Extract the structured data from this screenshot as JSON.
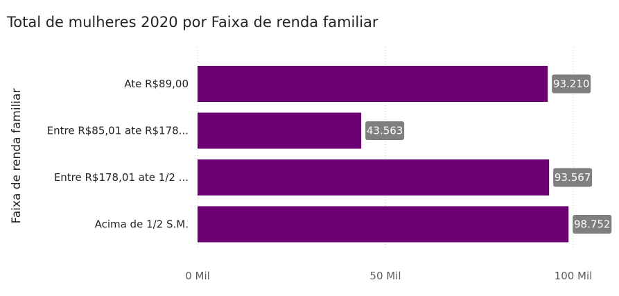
{
  "chart_data": {
    "type": "bar",
    "orientation": "horizontal",
    "title": "Total de mulheres 2020 por Faixa de renda familiar",
    "ylabel": "Faixa de renda familiar",
    "xlabel": "",
    "categories": [
      "Ate R$89,00",
      "Entre R$85,01 ate R$178...",
      "Entre R$178,01 ate 1/2 ...",
      "Acima de 1/2 S.M."
    ],
    "values": [
      93210,
      43563,
      93567,
      98752
    ],
    "value_labels": [
      "93.210",
      "43.563",
      "93.567",
      "98.752"
    ],
    "xlim": [
      0,
      100000
    ],
    "x_ticks": [
      {
        "value": 0,
        "label": "0 Mil"
      },
      {
        "value": 50000,
        "label": "50 Mil"
      },
      {
        "value": 100000,
        "label": "100 Mil"
      }
    ],
    "gridlines": true,
    "colors": {
      "bar": "#6b0072",
      "label_bg": "#7f7f7f",
      "label_bg_inside": "#3a0d3f",
      "grid": "#c8c6c4"
    }
  }
}
